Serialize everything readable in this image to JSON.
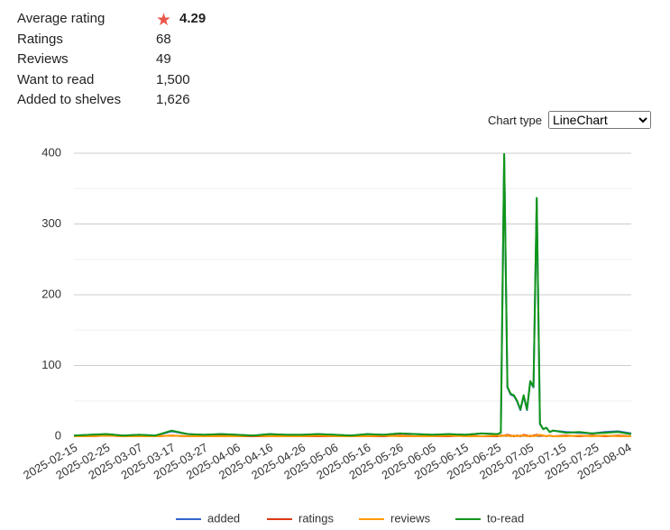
{
  "stats": {
    "rows": [
      {
        "label": "Average rating",
        "value": "4.29"
      },
      {
        "label": "Ratings",
        "value": "68"
      },
      {
        "label": "Reviews",
        "value": "49"
      },
      {
        "label": "Want to read",
        "value": "1,500"
      },
      {
        "label": "Added to shelves",
        "value": "1,626"
      }
    ]
  },
  "chart_type": {
    "label": "Chart type",
    "selected": "LineChart"
  },
  "chart_data": {
    "type": "line",
    "x": [
      "2025-02-15",
      "2025-02-20",
      "2025-02-25",
      "2025-03-02",
      "2025-03-07",
      "2025-03-12",
      "2025-03-17",
      "2025-03-22",
      "2025-03-27",
      "2025-04-01",
      "2025-04-06",
      "2025-04-11",
      "2025-04-16",
      "2025-04-21",
      "2025-04-26",
      "2025-05-01",
      "2025-05-06",
      "2025-05-11",
      "2025-05-16",
      "2025-05-21",
      "2025-05-26",
      "2025-05-31",
      "2025-06-05",
      "2025-06-10",
      "2025-06-15",
      "2025-06-20",
      "2025-06-25",
      "2025-06-26",
      "2025-06-27",
      "2025-06-28",
      "2025-06-29",
      "2025-06-30",
      "2025-07-01",
      "2025-07-02",
      "2025-07-03",
      "2025-07-04",
      "2025-07-05",
      "2025-07-06",
      "2025-07-07",
      "2025-07-08",
      "2025-07-09",
      "2025-07-10",
      "2025-07-11",
      "2025-07-12",
      "2025-07-16",
      "2025-07-20",
      "2025-07-24",
      "2025-07-28",
      "2025-08-01",
      "2025-08-05"
    ],
    "xlim": [
      "2025-02-15",
      "2025-08-05"
    ],
    "xticks": [
      "2025-02-15",
      "2025-02-25",
      "2025-03-07",
      "2025-03-17",
      "2025-03-27",
      "2025-04-06",
      "2025-04-16",
      "2025-04-26",
      "2025-05-06",
      "2025-05-16",
      "2025-05-26",
      "2025-06-05",
      "2025-06-15",
      "2025-06-25",
      "2025-07-05",
      "2025-07-15",
      "2025-07-25",
      "2025-08-04"
    ],
    "ylim": [
      0,
      400
    ],
    "yticks": [
      0,
      100,
      200,
      300,
      400
    ],
    "minor_yticks": [
      50,
      150,
      250,
      350
    ],
    "grid": true,
    "legend": "bottom",
    "series": [
      {
        "name": "added",
        "color": "#3366cc",
        "values": [
          1,
          2,
          3,
          1,
          2,
          1,
          7,
          3,
          2,
          3,
          2,
          1,
          3,
          2,
          2,
          3,
          2,
          1,
          3,
          2,
          4,
          3,
          2,
          3,
          2,
          4,
          3,
          5,
          397,
          69,
          59,
          57,
          49,
          37,
          57,
          37,
          77,
          69,
          335,
          17,
          10,
          12,
          6,
          8,
          6,
          5,
          4,
          6,
          7,
          4
        ]
      },
      {
        "name": "ratings",
        "color": "#dc3912",
        "values": [
          0,
          0,
          1,
          0,
          0,
          0,
          1,
          0,
          0,
          1,
          0,
          0,
          0,
          1,
          0,
          0,
          0,
          1,
          0,
          0,
          1,
          0,
          0,
          0,
          1,
          0,
          0,
          1,
          1,
          2,
          1,
          0,
          1,
          0,
          2,
          1,
          0,
          1,
          2,
          1,
          1,
          0,
          1,
          0,
          1,
          0,
          1,
          0,
          1,
          0
        ]
      },
      {
        "name": "reviews",
        "color": "#ff9900",
        "values": [
          0,
          0,
          1,
          0,
          0,
          0,
          1,
          0,
          0,
          0,
          0,
          1,
          0,
          0,
          0,
          1,
          0,
          0,
          0,
          1,
          0,
          0,
          0,
          1,
          0,
          0,
          1,
          0,
          1,
          1,
          0,
          1,
          0,
          1,
          1,
          0,
          1,
          0,
          1,
          2,
          1,
          0,
          1,
          0,
          0,
          1,
          0,
          1,
          0,
          0
        ]
      },
      {
        "name": "to-read",
        "color": "#109618",
        "values": [
          1,
          2,
          3,
          1,
          2,
          1,
          8,
          3,
          2,
          3,
          2,
          1,
          3,
          2,
          2,
          3,
          2,
          1,
          3,
          2,
          4,
          3,
          2,
          3,
          2,
          4,
          3,
          5,
          399,
          70,
          60,
          58,
          50,
          38,
          58,
          38,
          78,
          70,
          337,
          18,
          10,
          12,
          6,
          8,
          5,
          6,
          4,
          5,
          6,
          3
        ]
      }
    ]
  }
}
